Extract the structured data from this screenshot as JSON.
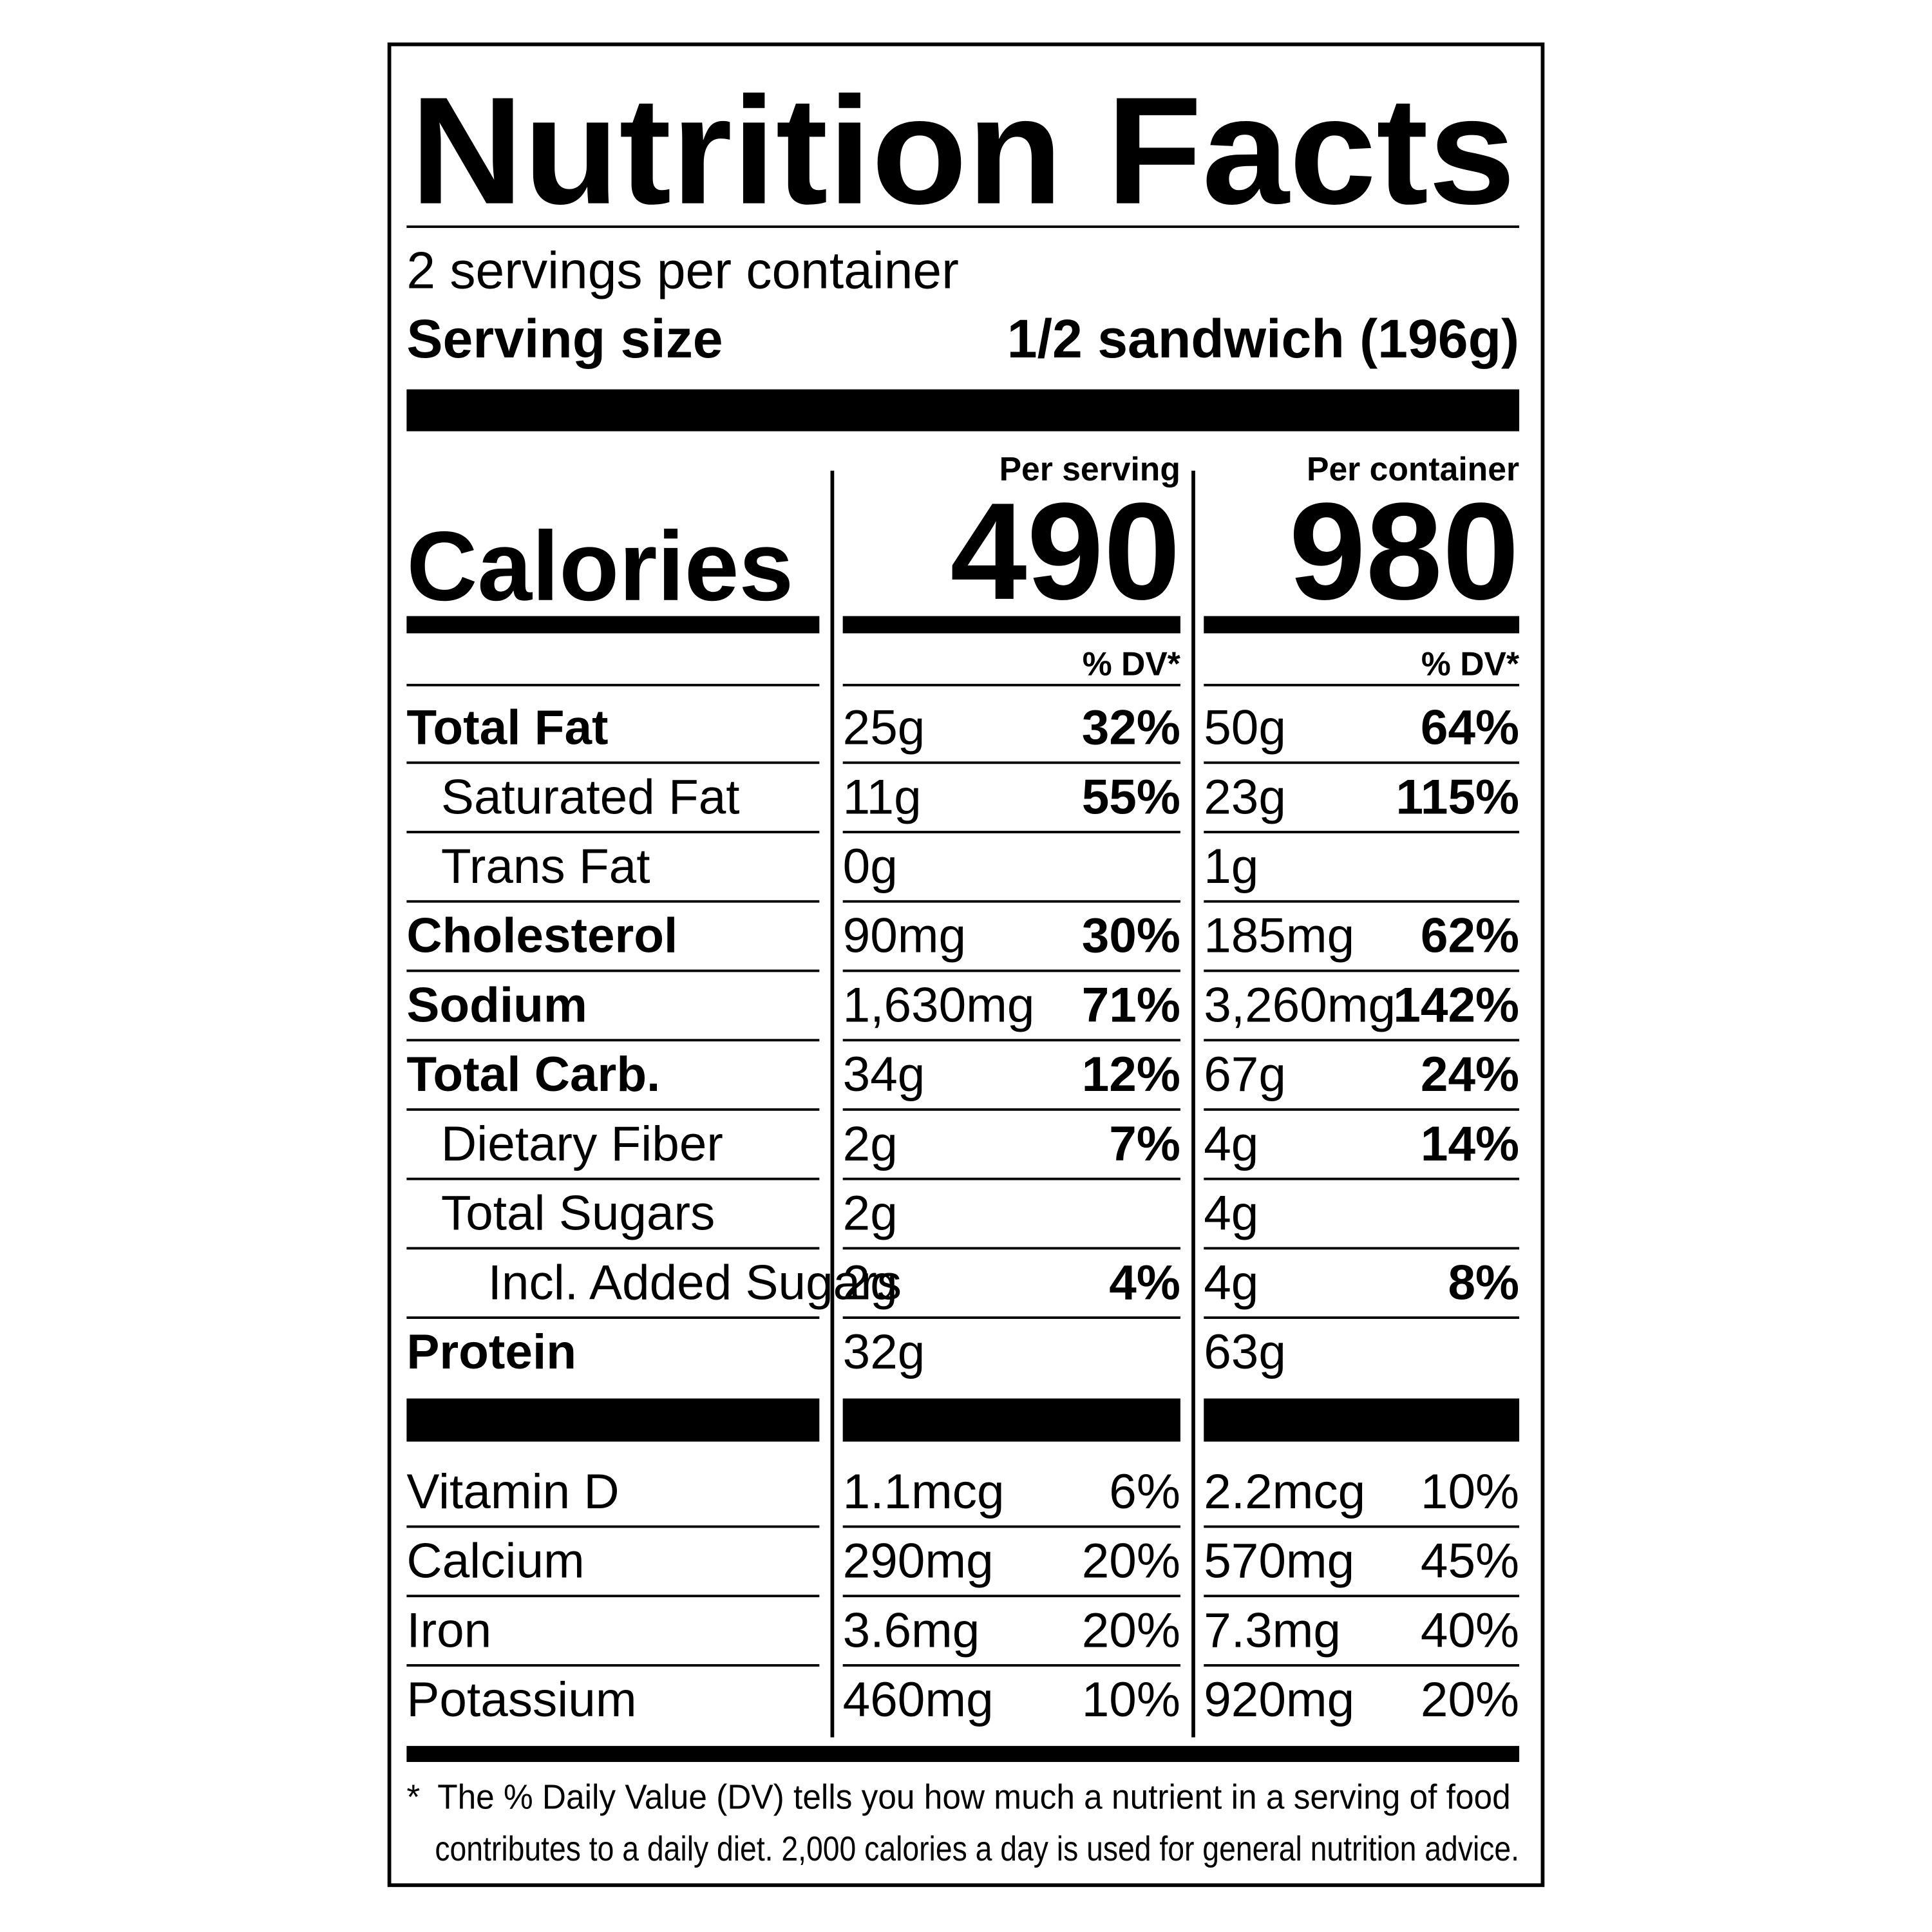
{
  "title": "Nutrition Facts",
  "servings_per_container": "2 servings per container",
  "serving_size": {
    "label": "Serving size",
    "value": "1/2 sandwich (196g)"
  },
  "calories": {
    "label": "Calories",
    "per_serving": {
      "header": "Per serving",
      "value": 490
    },
    "per_container": {
      "header": "Per container",
      "value": 980
    }
  },
  "dv_headers": [
    "% DV*",
    "% DV*"
  ],
  "nutrients": [
    {
      "name": "Total Fat",
      "level": 0,
      "serving_amount": "25g",
      "serving_dv": "32%",
      "container_amount": "50g",
      "container_dv": "64%"
    },
    {
      "name": "Saturated Fat",
      "level": 1,
      "serving_amount": "11g",
      "serving_dv": "55%",
      "container_amount": "23g",
      "container_dv": "115%"
    },
    {
      "name": "Trans Fat",
      "level": 1,
      "serving_amount": "0g",
      "container_amount": "1g"
    },
    {
      "name": "Cholesterol",
      "level": 0,
      "serving_amount": "90mg",
      "serving_dv": "30%",
      "container_amount": "185mg",
      "container_dv": "62%"
    },
    {
      "name": "Sodium",
      "level": 0,
      "serving_amount": "1,630mg",
      "serving_dv": "71%",
      "container_amount": "3,260mg",
      "container_dv": "142%"
    },
    {
      "name": "Total Carb.",
      "level": 0,
      "serving_amount": "34g",
      "serving_dv": "12%",
      "container_amount": "67g",
      "container_dv": "24%"
    },
    {
      "name": "Dietary Fiber",
      "level": 1,
      "serving_amount": "2g",
      "serving_dv": "7%",
      "container_amount": "4g",
      "container_dv": "14%"
    },
    {
      "name": "Total Sugars",
      "level": 1,
      "serving_amount": "2g",
      "container_amount": "4g"
    },
    {
      "name": "Incl. Added Sugars",
      "level": 2,
      "serving_amount": "2g",
      "serving_dv": "4%",
      "container_amount": "4g",
      "container_dv": "8%"
    },
    {
      "name": "Protein",
      "level": 0,
      "serving_amount": "32g",
      "container_amount": "63g"
    }
  ],
  "vitamins": [
    {
      "name": "Vitamin D",
      "serving_amount": "1.1mcg",
      "serving_dv": "6%",
      "container_amount": "2.2mcg",
      "container_dv": "10%"
    },
    {
      "name": "Calcium",
      "serving_amount": "290mg",
      "serving_dv": "20%",
      "container_amount": "570mg",
      "container_dv": "45%"
    },
    {
      "name": "Iron",
      "serving_amount": "3.6mg",
      "serving_dv": "20%",
      "container_amount": "7.3mg",
      "container_dv": "40%"
    },
    {
      "name": "Potassium",
      "serving_amount": "460mg",
      "serving_dv": "10%",
      "container_amount": "920mg",
      "container_dv": "20%"
    }
  ],
  "footnote": {
    "mark": "*",
    "lines": [
      "The % Daily Value (DV) tells you how much a nutrient in a serving of food",
      "contributes to a daily diet. 2,000 calories a day is used for general nutrition advice."
    ]
  }
}
